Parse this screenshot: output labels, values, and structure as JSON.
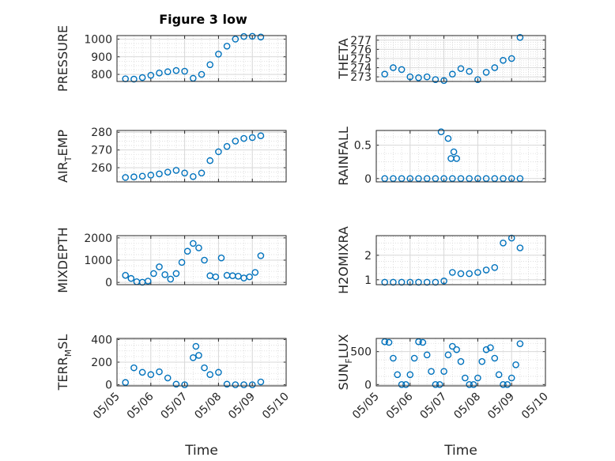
{
  "figure": {
    "title": "Figure 3 low",
    "xlabel": "Time"
  },
  "colors": {
    "marker": "#0072BD",
    "axis": "#262626",
    "grid": "#d9d9d9"
  },
  "chart_data": [
    {
      "type": "scatter",
      "panel": "PRESSURE",
      "ylabel": "PRESSURE",
      "ylim": [
        760,
        1020
      ],
      "yticks": [
        "800",
        "900",
        "1000"
      ],
      "grid": true,
      "xlim": [
        "05/05",
        "05/10"
      ],
      "xticks": [
        "05/05",
        "05/06",
        "05/07",
        "05/08",
        "05/09",
        "05/10"
      ],
      "xticklabels_shown": false,
      "x": [
        "05/05 06:00",
        "05/05 12:00",
        "05/05 18:00",
        "05/06 00:00",
        "05/06 06:00",
        "05/06 12:00",
        "05/06 18:00",
        "05/07 00:00",
        "05/07 06:00",
        "05/07 12:00",
        "05/07 18:00",
        "05/08 00:00",
        "05/08 06:00",
        "05/08 12:00",
        "05/08 18:00",
        "05/09 00:00",
        "05/09 06:00"
      ],
      "series": [
        {
          "values": [
            775,
            773,
            782,
            795,
            808,
            815,
            822,
            818,
            778,
            800,
            855,
            915,
            960,
            1000,
            1015,
            1016,
            1012
          ]
        }
      ]
    },
    {
      "type": "scatter",
      "panel": "THETA",
      "ylabel": "THETA",
      "ylim": [
        272.5,
        277.5
      ],
      "yticks": [
        "273",
        "274",
        "275",
        "276",
        "277"
      ],
      "grid": true,
      "xlim": [
        "05/05",
        "05/10"
      ],
      "xticklabels_shown": false,
      "x": [
        "05/05 06:00",
        "05/05 12:00",
        "05/05 18:00",
        "05/06 00:00",
        "05/06 06:00",
        "05/06 12:00",
        "05/06 18:00",
        "05/07 00:00",
        "05/07 06:00",
        "05/07 12:00",
        "05/07 18:00",
        "05/08 00:00",
        "05/08 06:00",
        "05/08 12:00",
        "05/08 18:00",
        "05/09 00:00",
        "05/09 06:00"
      ],
      "series": [
        {
          "values": [
            273.3,
            274.0,
            273.8,
            273.0,
            272.9,
            273.0,
            272.7,
            272.6,
            273.3,
            273.9,
            273.6,
            272.7,
            273.5,
            274.0,
            274.8,
            275.0,
            277.3
          ]
        }
      ]
    },
    {
      "type": "scatter",
      "panel": "AIR_TEMP",
      "ylabel": "AIR",
      "ylabel_sub": "T",
      "ylabel_rest": "EMP",
      "ylim": [
        252,
        281
      ],
      "yticks": [
        "260",
        "270",
        "280"
      ],
      "grid": true,
      "xlim": [
        "05/05",
        "05/10"
      ],
      "xticklabels_shown": false,
      "x": [
        "05/05 06:00",
        "05/05 12:00",
        "05/05 18:00",
        "05/06 00:00",
        "05/06 06:00",
        "05/06 12:00",
        "05/06 18:00",
        "05/07 00:00",
        "05/07 06:00",
        "05/07 12:00",
        "05/07 18:00",
        "05/08 00:00",
        "05/08 06:00",
        "05/08 12:00",
        "05/08 18:00",
        "05/09 00:00",
        "05/09 06:00"
      ],
      "series": [
        {
          "values": [
            254.5,
            254.8,
            255.2,
            255.8,
            256.5,
            257.5,
            258.5,
            257.0,
            255.0,
            257.0,
            264.0,
            269.0,
            272.0,
            275.0,
            276.5,
            277.0,
            278.0
          ]
        }
      ]
    },
    {
      "type": "scatter",
      "panel": "RAINFALL",
      "ylabel": "RAINFALL",
      "ylim": [
        -0.05,
        0.72
      ],
      "yticks": [
        "0",
        "0.5"
      ],
      "grid": true,
      "xlim": [
        "05/05",
        "05/10"
      ],
      "xticklabels_shown": false,
      "x": [
        "05/05 06:00",
        "05/05 12:00",
        "05/05 18:00",
        "05/06 00:00",
        "05/06 06:00",
        "05/06 12:00",
        "05/06 18:00",
        "05/07 00:00",
        "05/07 06:00",
        "05/07 12:00",
        "05/07 18:00",
        "05/08 00:00",
        "05/08 06:00",
        "05/08 12:00",
        "05/08 18:00",
        "05/09 00:00",
        "05/09 06:00",
        "05/06 22:00",
        "05/07 03:00",
        "05/07 05:00",
        "05/07 07:00",
        "05/07 09:00"
      ],
      "series": [
        {
          "values": [
            0,
            0,
            0,
            0,
            0,
            0,
            0,
            0,
            0,
            0,
            0,
            0,
            0,
            0,
            0,
            0,
            0,
            0.7,
            0.6,
            0.3,
            0.4,
            0.3
          ]
        }
      ]
    },
    {
      "type": "scatter",
      "panel": "MIXDEPTH",
      "ylabel": "MIXDEPTH",
      "ylim": [
        -100,
        2100
      ],
      "yticks": [
        "0",
        "1000",
        "2000"
      ],
      "grid": true,
      "xlim": [
        "05/05",
        "05/10"
      ],
      "xticklabels_shown": false,
      "x": [
        "05/05 06:00",
        "05/05 10:00",
        "05/05 14:00",
        "05/05 18:00",
        "05/05 22:00",
        "05/06 02:00",
        "05/06 06:00",
        "05/06 10:00",
        "05/06 14:00",
        "05/06 18:00",
        "05/06 22:00",
        "05/07 02:00",
        "05/07 06:00",
        "05/07 10:00",
        "05/07 14:00",
        "05/07 18:00",
        "05/07 22:00",
        "05/08 02:00",
        "05/08 06:00",
        "05/08 10:00",
        "05/08 14:00",
        "05/08 18:00",
        "05/08 22:00",
        "05/09 02:00",
        "05/09 06:00"
      ],
      "series": [
        {
          "values": [
            320,
            180,
            30,
            10,
            60,
            400,
            700,
            350,
            150,
            400,
            900,
            1400,
            1750,
            1550,
            1000,
            300,
            250,
            1100,
            320,
            300,
            280,
            200,
            250,
            450,
            1200
          ]
        }
      ]
    },
    {
      "type": "scatter",
      "panel": "H2OMIXRA",
      "ylabel": "H2OMIXRA",
      "ylim": [
        0.8,
        2.8
      ],
      "yticks": [
        "1",
        "2"
      ],
      "grid": true,
      "xlim": [
        "05/05",
        "05/10"
      ],
      "xticklabels_shown": false,
      "x": [
        "05/05 06:00",
        "05/05 12:00",
        "05/05 18:00",
        "05/06 00:00",
        "05/06 06:00",
        "05/06 12:00",
        "05/06 18:00",
        "05/07 00:00",
        "05/07 06:00",
        "05/07 12:00",
        "05/07 18:00",
        "05/08 00:00",
        "05/08 06:00",
        "05/08 12:00",
        "05/08 18:00",
        "05/09 00:00",
        "05/09 06:00"
      ],
      "series": [
        {
          "values": [
            0.9,
            0.9,
            0.9,
            0.9,
            0.9,
            0.9,
            0.9,
            0.95,
            1.3,
            1.25,
            1.25,
            1.3,
            1.4,
            1.5,
            2.5,
            2.7,
            2.3
          ]
        }
      ]
    },
    {
      "type": "scatter",
      "panel": "TERR_MSL",
      "ylabel": "TERR",
      "ylabel_sub": "M",
      "ylabel_rest": "SL",
      "ylim": [
        -10,
        410
      ],
      "yticks": [
        "0",
        "200",
        "400"
      ],
      "grid": true,
      "xlim": [
        "05/05",
        "05/10"
      ],
      "xticks": [
        "05/05",
        "05/06",
        "05/07",
        "05/08",
        "05/09",
        "05/10"
      ],
      "xticklabels_shown": true,
      "x": [
        "05/05 06:00",
        "05/05 12:00",
        "05/05 18:00",
        "05/06 00:00",
        "05/06 06:00",
        "05/06 12:00",
        "05/06 18:00",
        "05/07 00:00",
        "05/07 06:00",
        "05/07 08:00",
        "05/07 10:00",
        "05/07 14:00",
        "05/07 18:00",
        "05/08 00:00",
        "05/08 06:00",
        "05/08 12:00",
        "05/08 18:00",
        "05/09 00:00",
        "05/09 06:00"
      ],
      "series": [
        {
          "values": [
            20,
            150,
            110,
            90,
            115,
            60,
            5,
            0,
            240,
            340,
            260,
            150,
            90,
            110,
            5,
            0,
            0,
            0,
            25
          ]
        }
      ]
    },
    {
      "type": "scatter",
      "panel": "SUN_FLUX",
      "ylabel": "SUN",
      "ylabel_sub": "F",
      "ylabel_rest": "LUX",
      "ylim": [
        -20,
        700
      ],
      "yticks": [
        "0",
        "500"
      ],
      "grid": true,
      "xlim": [
        "05/05",
        "05/10"
      ],
      "xticks": [
        "05/05",
        "05/06",
        "05/07",
        "05/08",
        "05/09",
        "05/10"
      ],
      "xticklabels_shown": true,
      "x": [
        "05/05 06:00",
        "05/05 09:00",
        "05/05 12:00",
        "05/05 15:00",
        "05/05 18:00",
        "05/05 21:00",
        "05/06 00:00",
        "05/06 03:00",
        "05/06 06:00",
        "05/06 09:00",
        "05/06 12:00",
        "05/06 15:00",
        "05/06 18:00",
        "05/06 21:00",
        "05/07 00:00",
        "05/07 03:00",
        "05/07 06:00",
        "05/07 09:00",
        "05/07 12:00",
        "05/07 15:00",
        "05/07 18:00",
        "05/07 21:00",
        "05/08 00:00",
        "05/08 03:00",
        "05/08 06:00",
        "05/08 09:00",
        "05/08 12:00",
        "05/08 15:00",
        "05/08 18:00",
        "05/08 21:00",
        "05/09 00:00",
        "05/09 03:00",
        "05/09 06:00"
      ],
      "series": [
        {
          "values": [
            650,
            640,
            400,
            150,
            0,
            0,
            150,
            400,
            650,
            640,
            450,
            200,
            0,
            0,
            200,
            450,
            580,
            530,
            350,
            100,
            0,
            0,
            100,
            350,
            530,
            560,
            400,
            150,
            0,
            0,
            100,
            300,
            620
          ]
        }
      ]
    }
  ]
}
